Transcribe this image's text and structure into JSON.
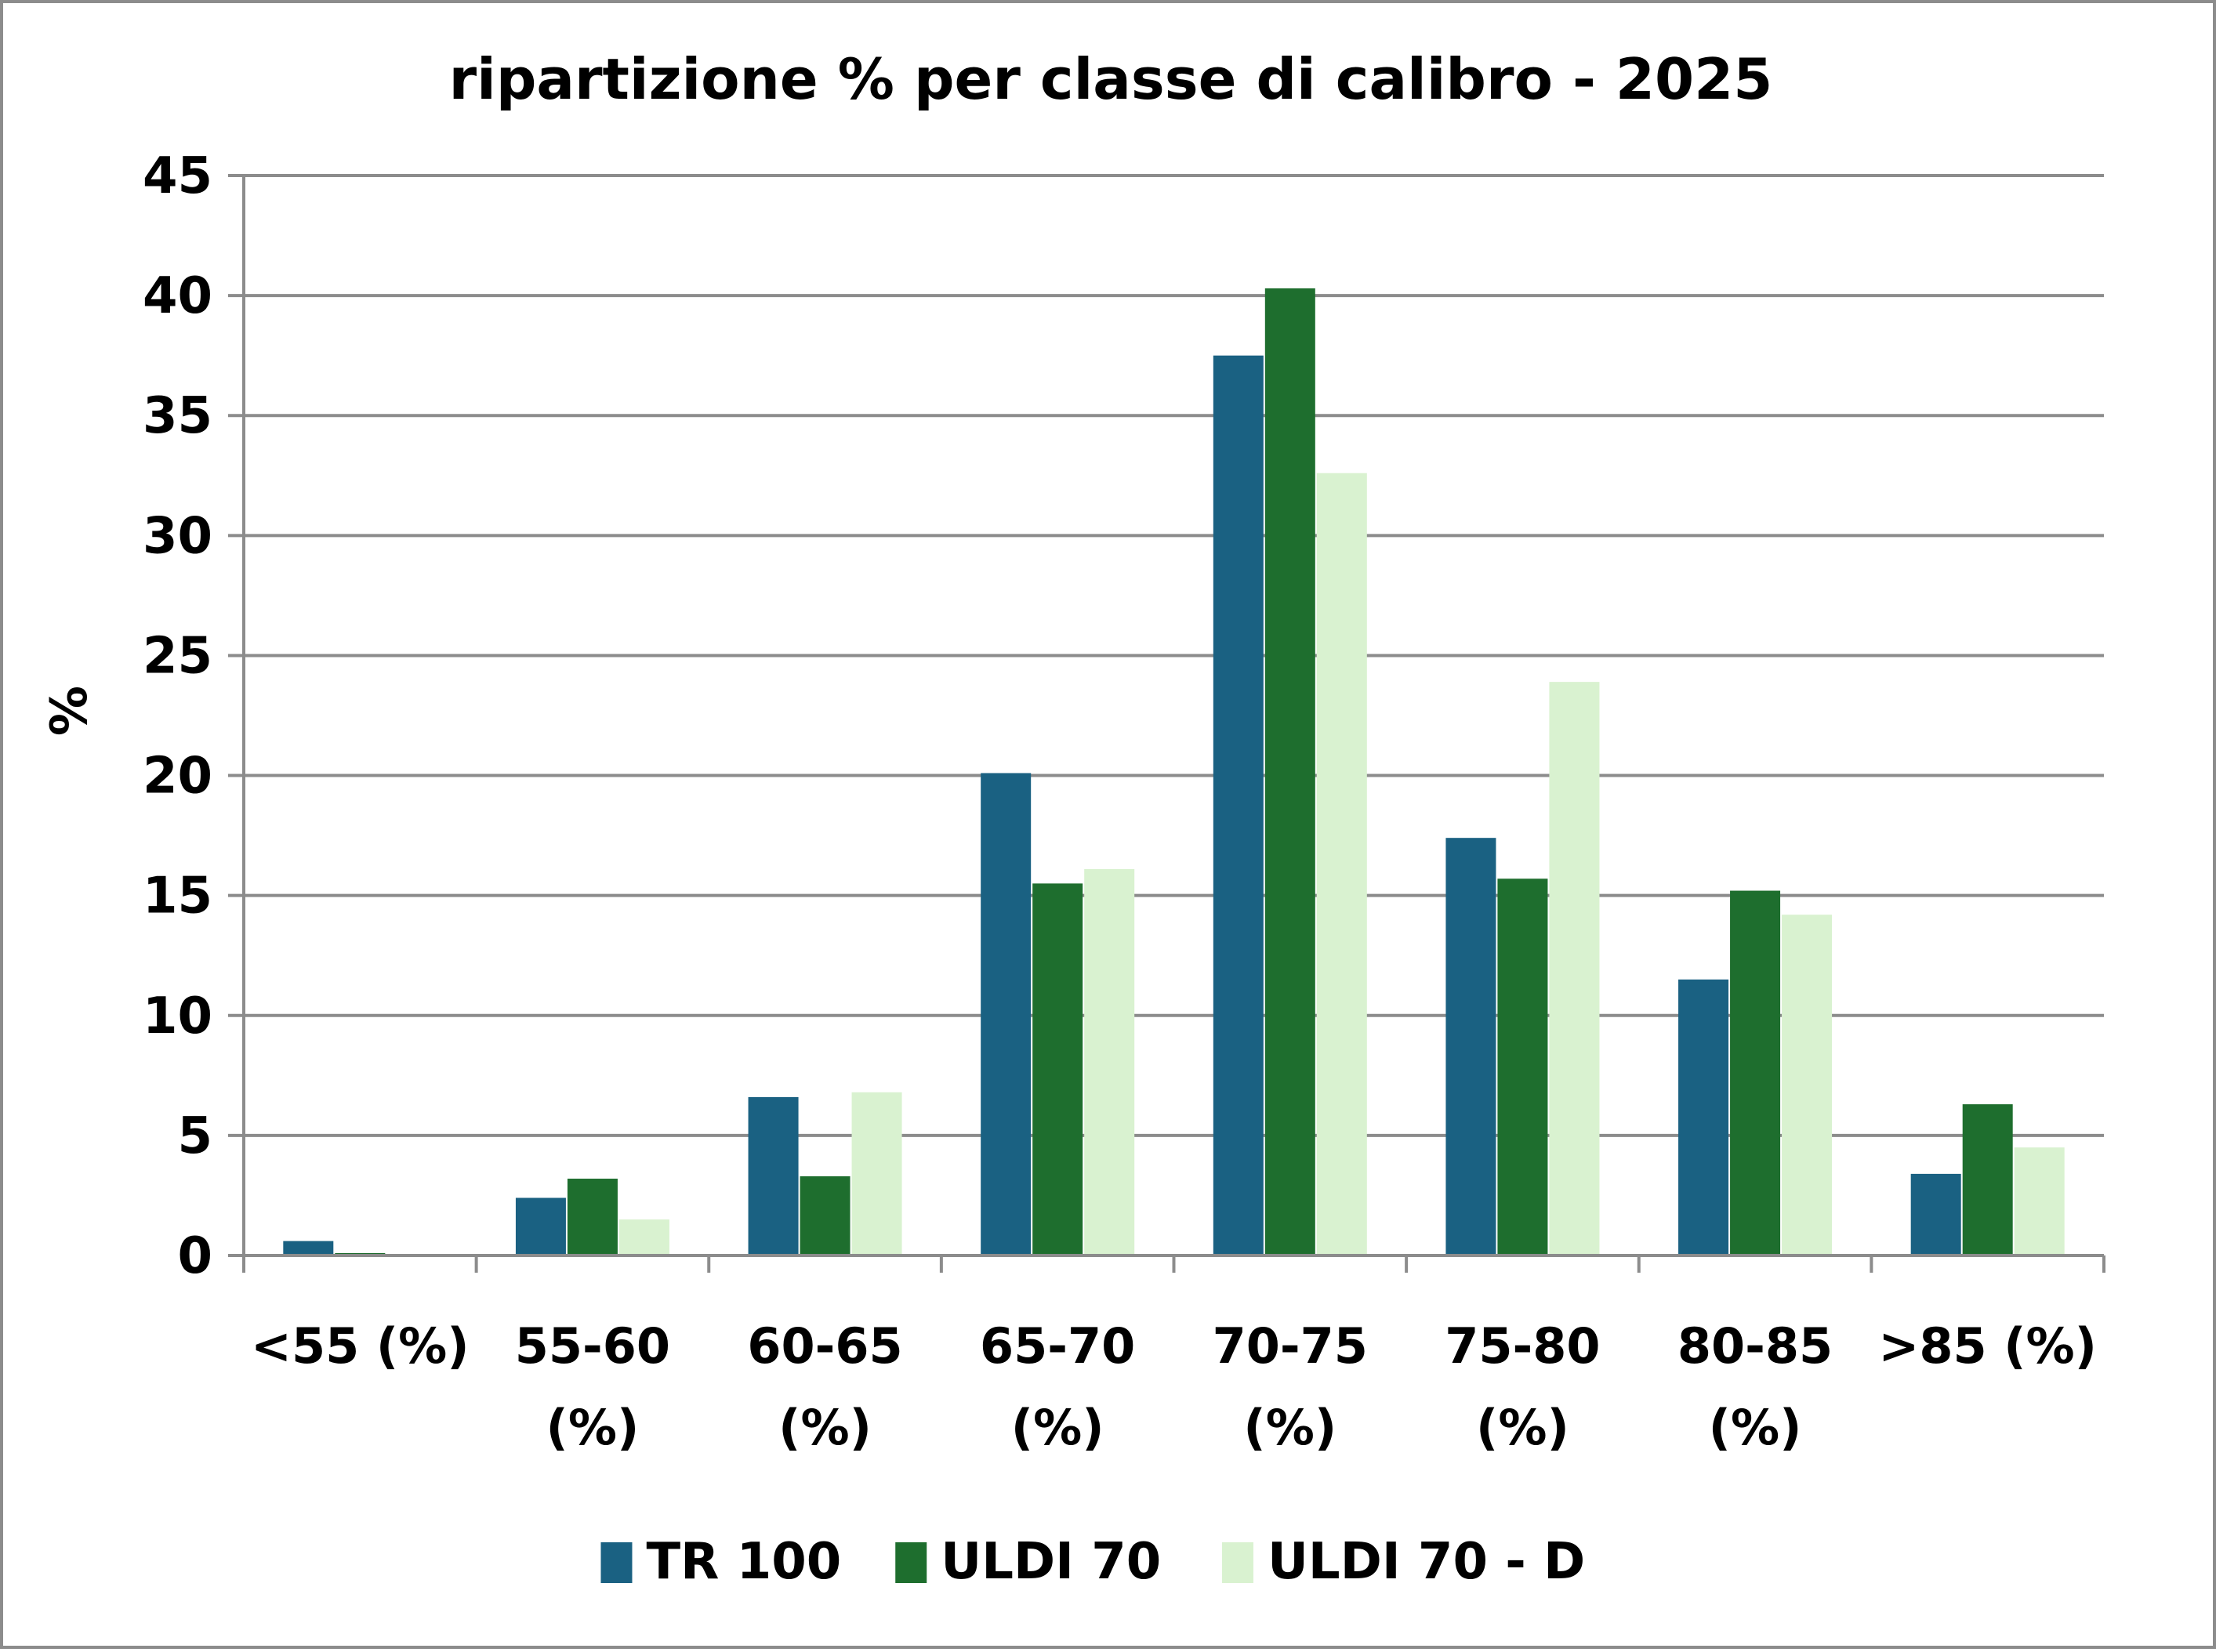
{
  "chart_data": {
    "type": "bar",
    "title": "ripartizione % per classe di calibro - 2025",
    "xlabel": "",
    "ylabel": "%",
    "ylim": [
      0,
      45
    ],
    "yticks": [
      0,
      5,
      10,
      15,
      20,
      25,
      30,
      35,
      40,
      45
    ],
    "grid": true,
    "legend_position": "bottom",
    "categories": [
      "<55 (%)",
      "55-60 (%)",
      "60-65 (%)",
      "65-70 (%)",
      "70-75 (%)",
      "75-80 (%)",
      "80-85 (%)",
      ">85 (%)"
    ],
    "category_lines": [
      [
        "<55 (%)"
      ],
      [
        "55-60",
        "(%)"
      ],
      [
        "60-65",
        "(%)"
      ],
      [
        "65-70",
        "(%)"
      ],
      [
        "70-75",
        "(%)"
      ],
      [
        "75-80",
        "(%)"
      ],
      [
        "80-85",
        "(%)"
      ],
      [
        ">85 (%)"
      ]
    ],
    "series": [
      {
        "name": "TR 100",
        "color": "#1a6182",
        "values": [
          0.6,
          2.4,
          6.6,
          20.1,
          37.5,
          17.4,
          11.5,
          3.4
        ]
      },
      {
        "name": "ULDI 70",
        "color": "#1e6e2e",
        "values": [
          0.1,
          3.2,
          3.3,
          15.5,
          40.3,
          15.7,
          15.2,
          6.3
        ]
      },
      {
        "name": "ULDI 70 - D",
        "color": "#d9f2d0",
        "values": [
          0.0,
          1.5,
          6.8,
          16.1,
          32.6,
          23.9,
          14.2,
          4.5
        ]
      }
    ]
  }
}
